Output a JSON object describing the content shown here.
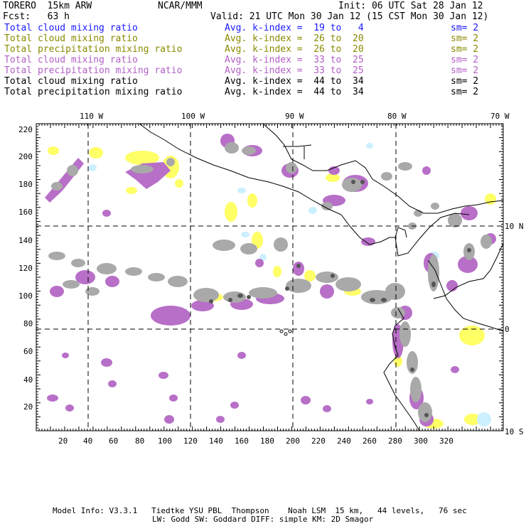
{
  "header": {
    "model": "TORERO  15km ARW",
    "org": "NCAR/MMM",
    "init": "Init: 06 UTC Sat 28 Jan 12",
    "fcst": "Fcst:   63 h",
    "valid": "Valid: 21 UTC Mon 30 Jan 12 (15 CST Mon 30 Jan 12)"
  },
  "legend": [
    {
      "name": "Total cloud mixing ratio",
      "kindex": "Avg. k-index =  19 to   4",
      "sm": "sm= 2",
      "color": "#1a1aff"
    },
    {
      "name": "Total cloud mixing ratio",
      "kindex": "Avg. k-index =  26 to  20",
      "sm": "sm= 2",
      "color": "#8a8a00"
    },
    {
      "name": "Total precipitation mixing ratio",
      "kindex": "Avg. k-index =  26 to  20",
      "sm": "sm= 2",
      "color": "#8a8a00"
    },
    {
      "name": "Total cloud mixing ratio",
      "kindex": "Avg. k-index =  33 to  25",
      "sm": "sm= 2",
      "color": "#b35fc6"
    },
    {
      "name": "Total precipitation mixing ratio",
      "kindex": "Avg. k-index =  33 to  25",
      "sm": "sm= 2",
      "color": "#b35fc6"
    },
    {
      "name": "Total cloud mixing ratio",
      "kindex": "Avg. k-index =  44 to  34",
      "sm": "sm= 2",
      "color": "#000000"
    },
    {
      "name": "Total precipitation mixing ratio",
      "kindex": "Avg. k-index =  44 to  34",
      "sm": "sm= 2",
      "color": "#000000"
    }
  ],
  "axes": {
    "lon_labels": [
      "110 W",
      "100 W",
      "90 W",
      "80 W",
      "70 W"
    ],
    "lat_labels": [
      "10 N",
      "0",
      "10 S"
    ],
    "x_ticks": [
      "20",
      "40",
      "60",
      "80",
      "100",
      "120",
      "140",
      "160",
      "180",
      "200",
      "220",
      "240",
      "260",
      "280",
      "300",
      "320"
    ],
    "y_ticks": [
      "220",
      "200",
      "180",
      "160",
      "140",
      "120",
      "100",
      "80",
      "60",
      "40",
      "20"
    ]
  },
  "footer": {
    "line1": "Model Info: V3.3.1   Tiedtke YSU PBL  Thompson    Noah LSM  15 km,   44 levels,   76 sec",
    "line2": "LW: Godd SW: Goddard DIFF: simple KM: 2D Smagor"
  },
  "colors": {
    "gray": "#a9a9a9",
    "dark": "#555555",
    "purple": "#b86fc8",
    "yellow": "#ffff66",
    "cyan": "#ccf0ff",
    "coast": "#000000"
  }
}
